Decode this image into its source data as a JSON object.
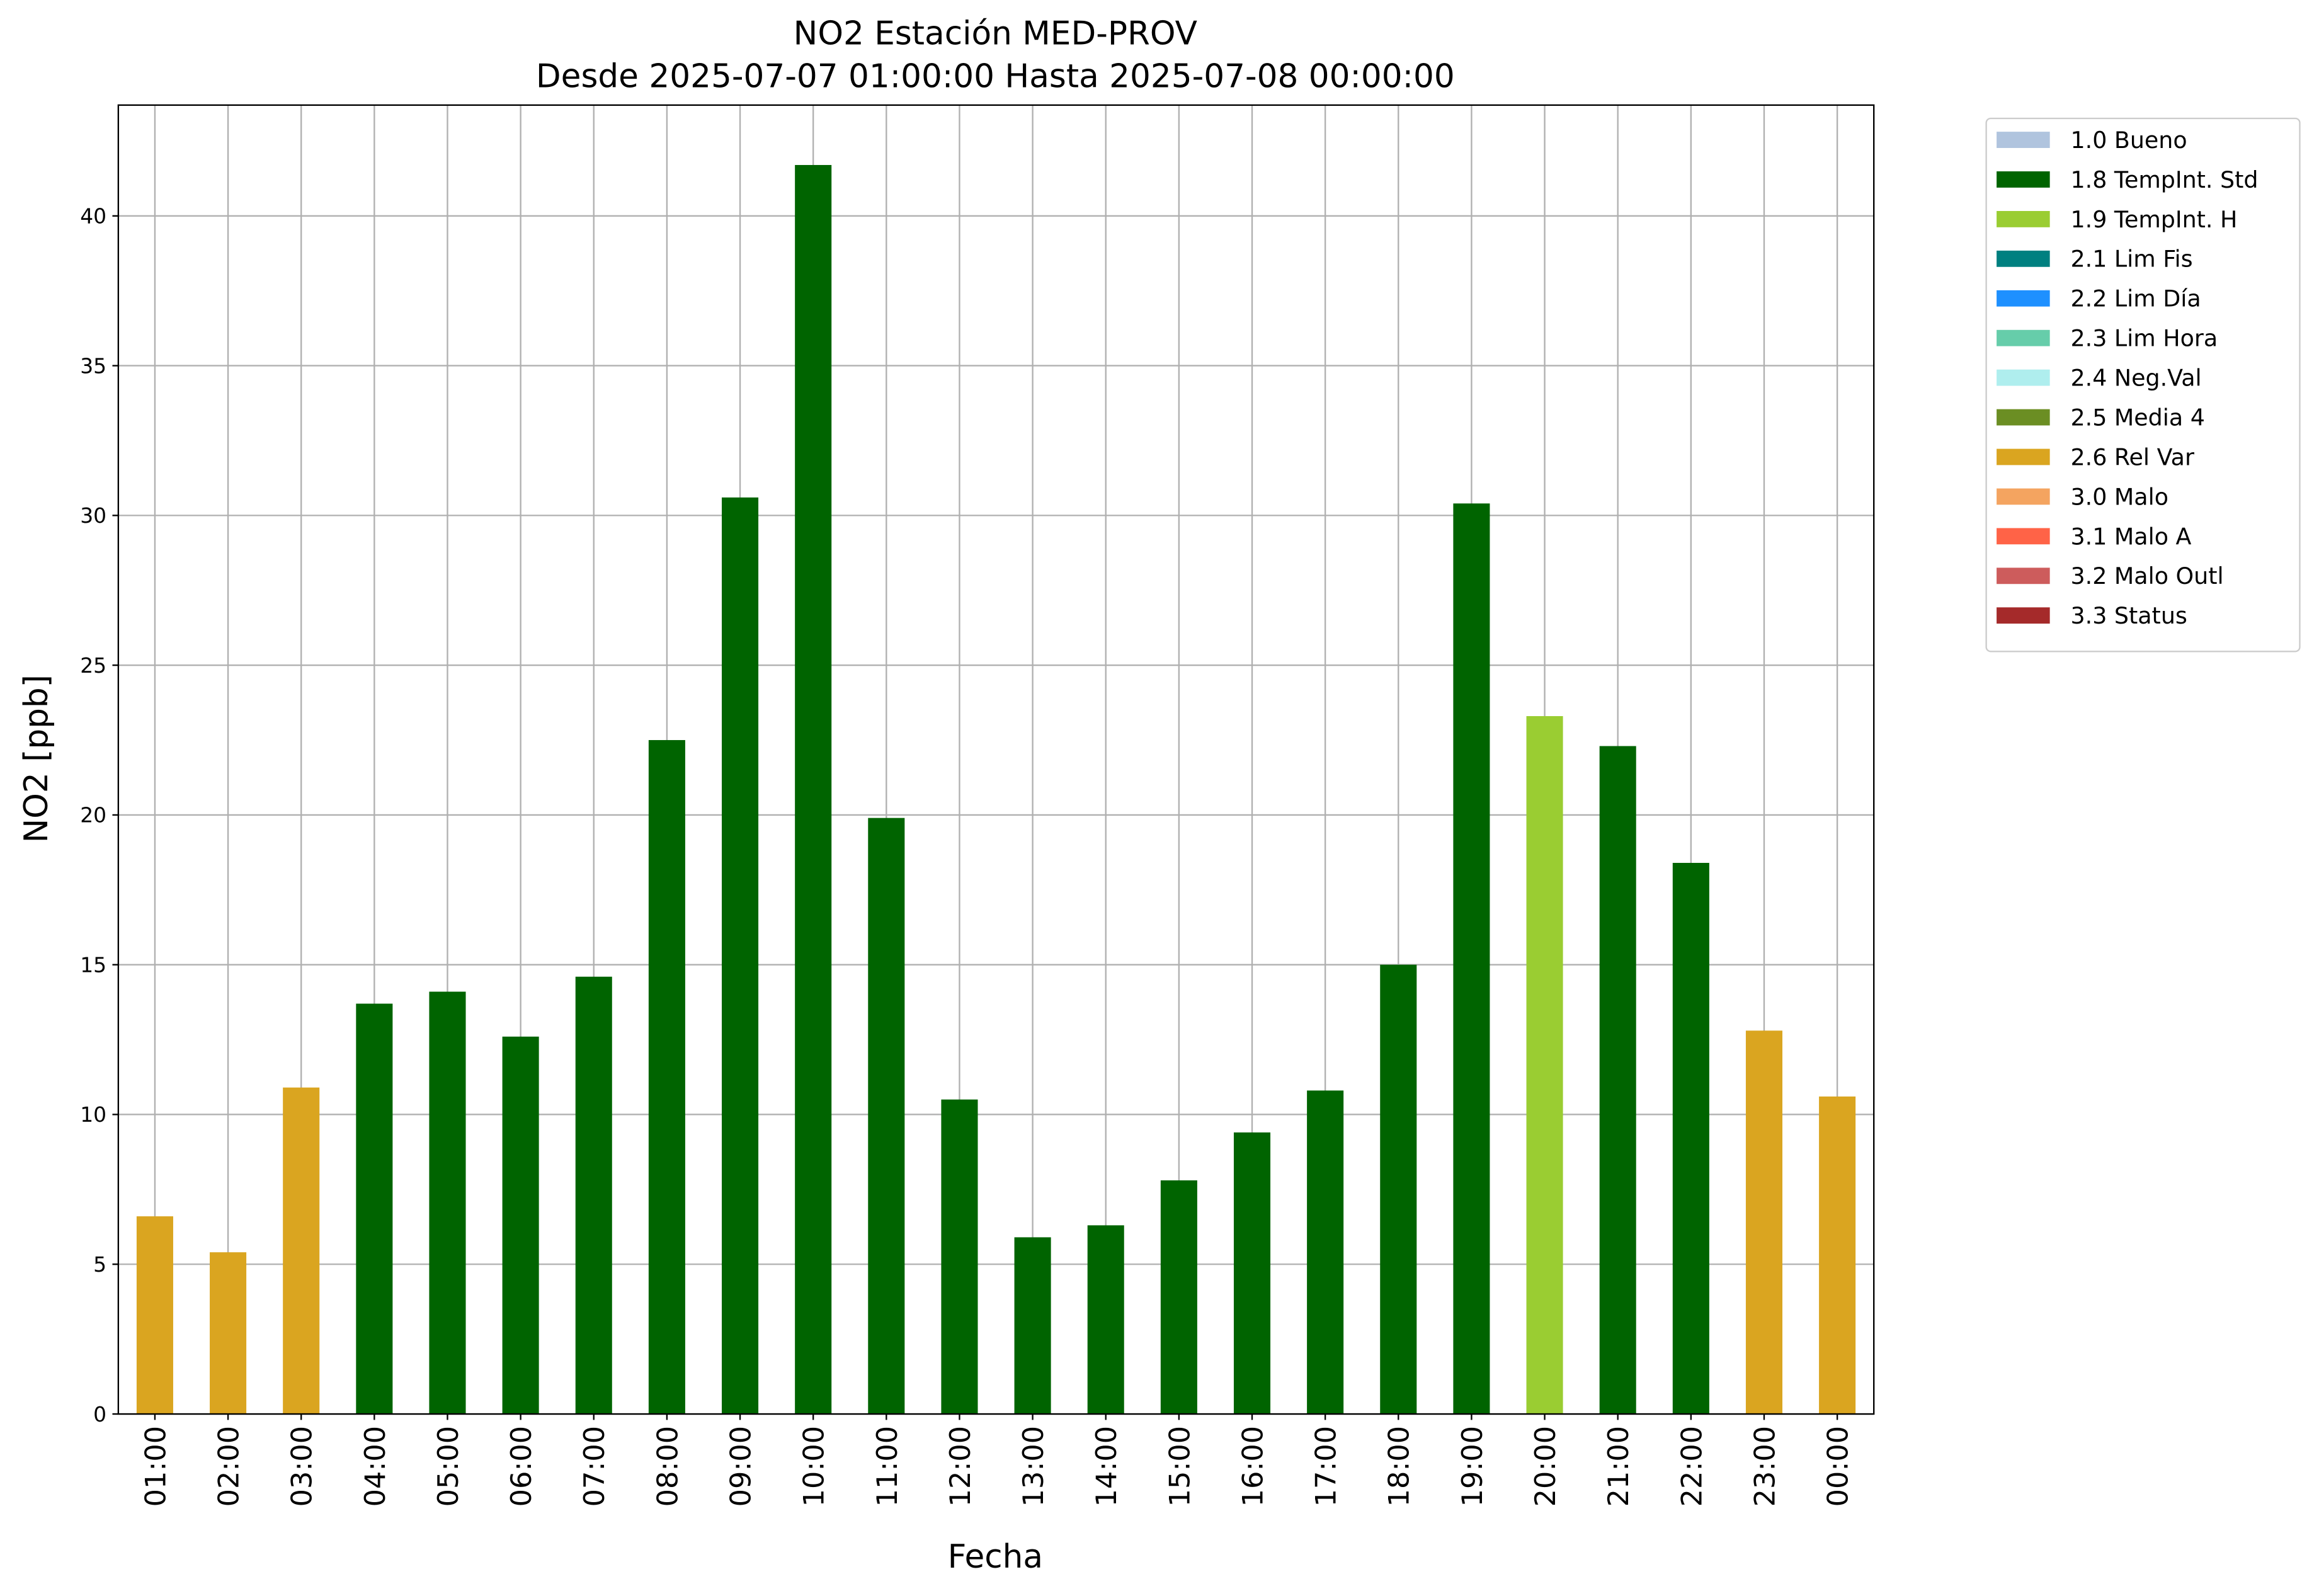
{
  "chart_data": {
    "type": "bar",
    "title": "NO2 Estación MED-PROV",
    "subtitle": "Desde 2025-07-07 01:00:00 Hasta 2025-07-08 00:00:00",
    "x_label": "Fecha",
    "y_label": "NO2 [ppb]",
    "categories": [
      "01:00",
      "02:00",
      "03:00",
      "04:00",
      "05:00",
      "06:00",
      "07:00",
      "08:00",
      "09:00",
      "10:00",
      "11:00",
      "12:00",
      "13:00",
      "14:00",
      "15:00",
      "16:00",
      "17:00",
      "18:00",
      "19:00",
      "20:00",
      "21:00",
      "22:00",
      "23:00",
      "00:00"
    ],
    "series": [
      {
        "name": "1.0 Bueno",
        "color": "#b0c4de",
        "values": [
          null,
          null,
          null,
          null,
          null,
          null,
          null,
          null,
          null,
          null,
          null,
          null,
          null,
          null,
          null,
          null,
          null,
          null,
          null,
          null,
          null,
          null,
          null,
          null
        ]
      },
      {
        "name": "1.8 TempInt. Std",
        "color": "#006400",
        "values": [
          null,
          null,
          null,
          13.7,
          14.1,
          12.6,
          14.6,
          22.5,
          30.6,
          41.7,
          19.9,
          10.5,
          5.9,
          6.3,
          7.8,
          9.4,
          10.8,
          15.0,
          30.4,
          null,
          22.3,
          18.4,
          null,
          null
        ]
      },
      {
        "name": "1.9 TempInt. H",
        "color": "#9acd32",
        "values": [
          null,
          null,
          null,
          null,
          null,
          null,
          null,
          null,
          null,
          null,
          null,
          null,
          null,
          null,
          null,
          null,
          null,
          null,
          null,
          23.3,
          null,
          null,
          null,
          null
        ]
      },
      {
        "name": "2.1 Lim Fis",
        "color": "#008080",
        "values": [
          null,
          null,
          null,
          null,
          null,
          null,
          null,
          null,
          null,
          null,
          null,
          null,
          null,
          null,
          null,
          null,
          null,
          null,
          null,
          null,
          null,
          null,
          null,
          null
        ]
      },
      {
        "name": "2.2 Lim Día",
        "color": "#1e90ff",
        "values": [
          null,
          null,
          null,
          null,
          null,
          null,
          null,
          null,
          null,
          null,
          null,
          null,
          null,
          null,
          null,
          null,
          null,
          null,
          null,
          null,
          null,
          null,
          null,
          null
        ]
      },
      {
        "name": "2.3 Lim Hora",
        "color": "#66cdaa",
        "values": [
          null,
          null,
          null,
          null,
          null,
          null,
          null,
          null,
          null,
          null,
          null,
          null,
          null,
          null,
          null,
          null,
          null,
          null,
          null,
          null,
          null,
          null,
          null,
          null
        ]
      },
      {
        "name": "2.4 Neg.Val",
        "color": "#afeeee",
        "values": [
          null,
          null,
          null,
          null,
          null,
          null,
          null,
          null,
          null,
          null,
          null,
          null,
          null,
          null,
          null,
          null,
          null,
          null,
          null,
          null,
          null,
          null,
          null,
          null
        ]
      },
      {
        "name": "2.5 Media 4",
        "color": "#6b8e23",
        "values": [
          null,
          null,
          null,
          null,
          null,
          null,
          null,
          null,
          null,
          null,
          null,
          null,
          null,
          null,
          null,
          null,
          null,
          null,
          null,
          null,
          null,
          null,
          null,
          null
        ]
      },
      {
        "name": "2.6 Rel Var",
        "color": "#daa520",
        "values": [
          6.6,
          5.4,
          10.9,
          null,
          null,
          null,
          null,
          null,
          null,
          null,
          null,
          null,
          null,
          null,
          null,
          null,
          null,
          null,
          null,
          null,
          null,
          null,
          12.8,
          10.6
        ]
      },
      {
        "name": "3.0 Malo",
        "color": "#f4a460",
        "values": [
          null,
          null,
          null,
          null,
          null,
          null,
          null,
          null,
          null,
          null,
          null,
          null,
          null,
          null,
          null,
          null,
          null,
          null,
          null,
          null,
          null,
          null,
          null,
          null
        ]
      },
      {
        "name": "3.1 Malo A",
        "color": "#ff6347",
        "values": [
          null,
          null,
          null,
          null,
          null,
          null,
          null,
          null,
          null,
          null,
          null,
          null,
          null,
          null,
          null,
          null,
          null,
          null,
          null,
          null,
          null,
          null,
          null,
          null
        ]
      },
      {
        "name": "3.2 Malo Outl",
        "color": "#cd5c5c",
        "values": [
          null,
          null,
          null,
          null,
          null,
          null,
          null,
          null,
          null,
          null,
          null,
          null,
          null,
          null,
          null,
          null,
          null,
          null,
          null,
          null,
          null,
          null,
          null,
          null
        ]
      },
      {
        "name": "3.3 Status",
        "color": "#a52a2a",
        "values": [
          null,
          null,
          null,
          null,
          null,
          null,
          null,
          null,
          null,
          null,
          null,
          null,
          null,
          null,
          null,
          null,
          null,
          null,
          null,
          null,
          null,
          null,
          null,
          null
        ]
      }
    ],
    "ylim": [
      0,
      43.7
    ],
    "yticks": [
      0,
      5,
      10,
      15,
      20,
      25,
      30,
      35,
      40
    ],
    "grid": true
  }
}
